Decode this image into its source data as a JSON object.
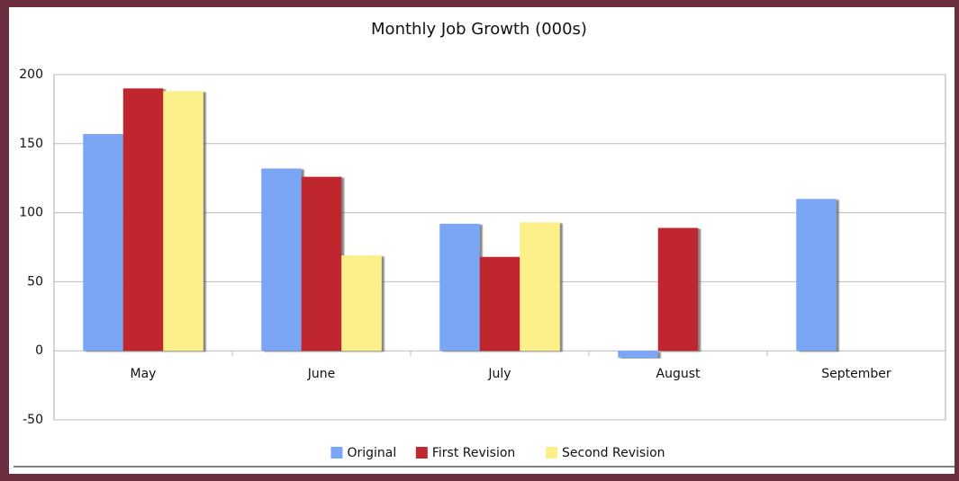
{
  "chart_data": {
    "type": "bar",
    "title": "Monthly Job Growth (000s)",
    "categories": [
      "May",
      "June",
      "July",
      "August",
      "September"
    ],
    "series": [
      {
        "name": "Original",
        "color": "#7aa6f5",
        "values": [
          157,
          132,
          92,
          -5,
          110
        ]
      },
      {
        "name": "First Revision",
        "color": "#c0282f",
        "values": [
          190,
          126,
          68,
          89,
          null
        ]
      },
      {
        "name": "Second Revision",
        "color": "#fbf08a",
        "values": [
          188,
          69,
          93,
          null,
          null
        ]
      }
    ],
    "ylim": [
      -50,
      200
    ],
    "yticks": [
      -50,
      0,
      50,
      100,
      150,
      200
    ],
    "grid": true,
    "legend": "bottom"
  }
}
